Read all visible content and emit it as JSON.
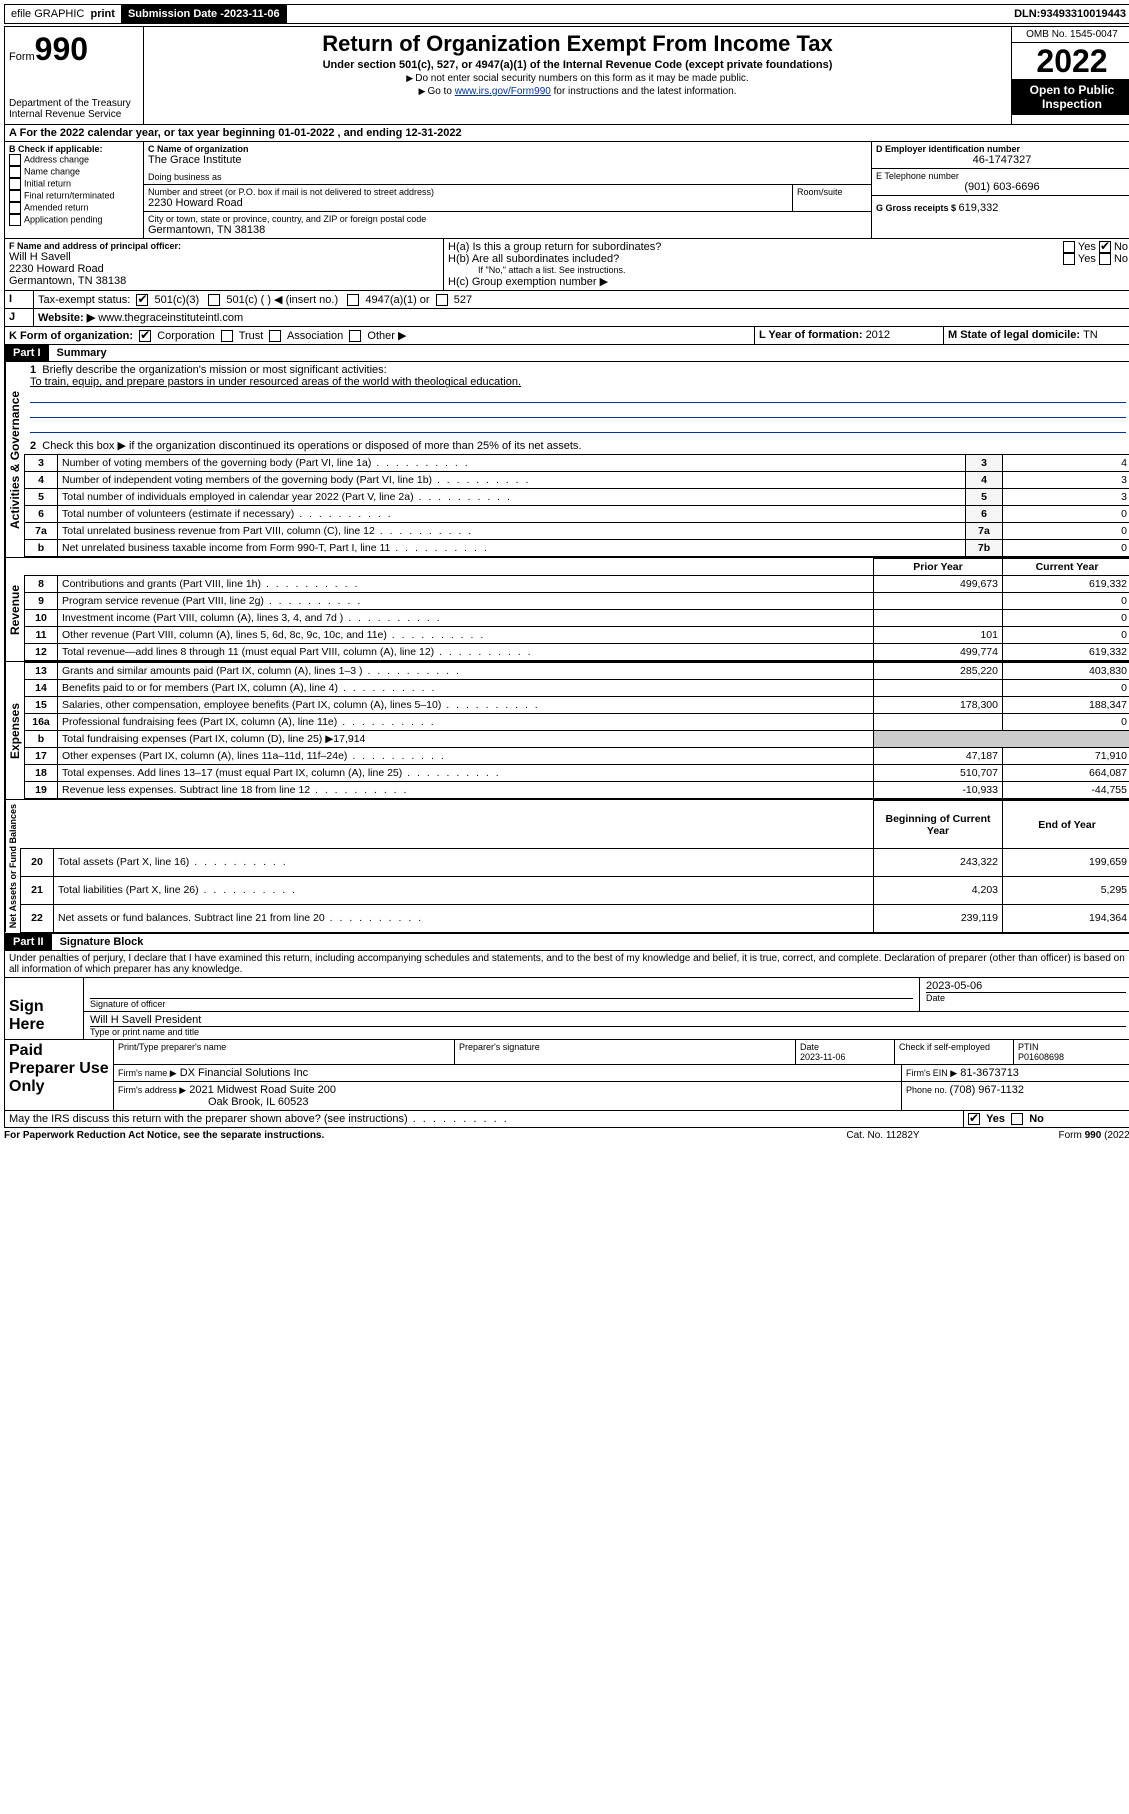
{
  "topbar": {
    "efile": "efile GRAPHIC",
    "print": "print",
    "sub_label": "Submission Date - ",
    "sub_date": "2023-11-06",
    "dln_label": "DLN: ",
    "dln": "93493310019443"
  },
  "header": {
    "form_word": "Form",
    "form_num": "990",
    "dept": "Department of the Treasury",
    "irs": "Internal Revenue Service",
    "title": "Return of Organization Exempt From Income Tax",
    "sub": "Under section 501(c), 527, or 4947(a)(1) of the Internal Revenue Code (except private foundations)",
    "note1": "Do not enter social security numbers on this form as it may be made public.",
    "note2_pre": "Go to ",
    "note2_link": "www.irs.gov/Form990",
    "note2_post": " for instructions and the latest information.",
    "omb": "OMB No. 1545-0047",
    "year": "2022",
    "inspect": "Open to Public Inspection"
  },
  "periodA": {
    "text_pre": "For the 2022 calendar year, or tax year beginning ",
    "begin": "01-01-2022",
    "mid": " , and ending ",
    "end": "12-31-2022"
  },
  "boxB": {
    "label": "B Check if applicable:",
    "items": [
      "Address change",
      "Name change",
      "Initial return",
      "Final return/terminated",
      "Amended return",
      "Application pending"
    ]
  },
  "boxC": {
    "name_label": "C Name of organization",
    "name": "The Grace Institute",
    "dba_label": "Doing business as",
    "dba": "",
    "addr_label": "Number and street (or P.O. box if mail is not delivered to street address)",
    "room_label": "Room/suite",
    "street": "2230 Howard Road",
    "city_label": "City or town, state or province, country, and ZIP or foreign postal code",
    "city": "Germantown, TN  38138"
  },
  "boxD": {
    "label": "D Employer identification number",
    "val": "46-1747327"
  },
  "boxE": {
    "label": "E Telephone number",
    "val": "(901) 603-6696"
  },
  "boxG": {
    "label": "G Gross receipts $ ",
    "val": "619,332"
  },
  "boxF": {
    "label": "F Name and address of principal officer:",
    "name": "Will H Savell",
    "street": "2230 Howard Road",
    "city": "Germantown, TN  38138"
  },
  "boxH": {
    "a_label": "H(a)  Is this a group return for subordinates?",
    "b_label": "H(b)  Are all subordinates included?",
    "b_note": "If \"No,\" attach a list. See instructions.",
    "c_label": "H(c)  Group exemption number ▶",
    "yes": "Yes",
    "no": "No"
  },
  "boxI": {
    "label": "Tax-exempt status:",
    "o1": "501(c)(3)",
    "o2": "501(c) (  ) ◀ (insert no.)",
    "o3": "4947(a)(1) or",
    "o4": "527"
  },
  "boxJ": {
    "label": "Website: ▶",
    "val": "www.thegraceinstituteintl.com"
  },
  "boxK": {
    "label": "K Form of organization:",
    "o1": "Corporation",
    "o2": "Trust",
    "o3": "Association",
    "o4": "Other ▶"
  },
  "boxL": {
    "label": "L Year of formation: ",
    "val": "2012"
  },
  "boxM": {
    "label": "M State of legal domicile: ",
    "val": "TN"
  },
  "partI": {
    "hdr": "Part I",
    "title": "Summary",
    "q1_label": "Briefly describe the organization's mission or most significant activities:",
    "q1_text": "To train, equip, and prepare pastors in under resourced areas of the world with theological education.",
    "q2": "Check this box ▶        if the organization discontinued its operations or disposed of more than 25% of its net assets.",
    "rows_top": [
      {
        "n": "3",
        "t": "Number of voting members of the governing body (Part VI, line 1a)",
        "l": "3",
        "v": "4"
      },
      {
        "n": "4",
        "t": "Number of independent voting members of the governing body (Part VI, line 1b)",
        "l": "4",
        "v": "3"
      },
      {
        "n": "5",
        "t": "Total number of individuals employed in calendar year 2022 (Part V, line 2a)",
        "l": "5",
        "v": "3"
      },
      {
        "n": "6",
        "t": "Total number of volunteers (estimate if necessary)",
        "l": "6",
        "v": "0"
      },
      {
        "n": "7a",
        "t": "Total unrelated business revenue from Part VIII, column (C), line 12",
        "l": "7a",
        "v": "0"
      },
      {
        "n": "b",
        "t": "Net unrelated business taxable income from Form 990-T, Part I, line 11",
        "l": "7b",
        "v": "0"
      }
    ],
    "col_prior": "Prior Year",
    "col_curr": "Current Year",
    "rev": [
      {
        "n": "8",
        "t": "Contributions and grants (Part VIII, line 1h)",
        "p": "499,673",
        "c": "619,332"
      },
      {
        "n": "9",
        "t": "Program service revenue (Part VIII, line 2g)",
        "p": "",
        "c": "0"
      },
      {
        "n": "10",
        "t": "Investment income (Part VIII, column (A), lines 3, 4, and 7d )",
        "p": "",
        "c": "0"
      },
      {
        "n": "11",
        "t": "Other revenue (Part VIII, column (A), lines 5, 6d, 8c, 9c, 10c, and 11e)",
        "p": "101",
        "c": "0"
      },
      {
        "n": "12",
        "t": "Total revenue—add lines 8 through 11 (must equal Part VIII, column (A), line 12)",
        "p": "499,774",
        "c": "619,332"
      }
    ],
    "exp": [
      {
        "n": "13",
        "t": "Grants and similar amounts paid (Part IX, column (A), lines 1–3 )",
        "p": "285,220",
        "c": "403,830"
      },
      {
        "n": "14",
        "t": "Benefits paid to or for members (Part IX, column (A), line 4)",
        "p": "",
        "c": "0"
      },
      {
        "n": "15",
        "t": "Salaries, other compensation, employee benefits (Part IX, column (A), lines 5–10)",
        "p": "178,300",
        "c": "188,347"
      },
      {
        "n": "16a",
        "t": "Professional fundraising fees (Part IX, column (A), line 11e)",
        "p": "",
        "c": "0"
      },
      {
        "n": "b",
        "t": "Total fundraising expenses (Part IX, column (D), line 25) ▶17,914",
        "p": "—",
        "c": "—"
      },
      {
        "n": "17",
        "t": "Other expenses (Part IX, column (A), lines 11a–11d, 11f–24e)",
        "p": "47,187",
        "c": "71,910"
      },
      {
        "n": "18",
        "t": "Total expenses. Add lines 13–17 (must equal Part IX, column (A), line 25)",
        "p": "510,707",
        "c": "664,087"
      },
      {
        "n": "19",
        "t": "Revenue less expenses. Subtract line 18 from line 12",
        "p": "-10,933",
        "c": "-44,755"
      }
    ],
    "col_beg": "Beginning of Current Year",
    "col_end": "End of Year",
    "net": [
      {
        "n": "20",
        "t": "Total assets (Part X, line 16)",
        "p": "243,322",
        "c": "199,659"
      },
      {
        "n": "21",
        "t": "Total liabilities (Part X, line 26)",
        "p": "4,203",
        "c": "5,295"
      },
      {
        "n": "22",
        "t": "Net assets or fund balances. Subtract line 21 from line 20",
        "p": "239,119",
        "c": "194,364"
      }
    ],
    "side_ag": "Activities & Governance",
    "side_rev": "Revenue",
    "side_exp": "Expenses",
    "side_net": "Net Assets or Fund Balances"
  },
  "partII": {
    "hdr": "Part II",
    "title": "Signature Block",
    "decl": "Under penalties of perjury, I declare that I have examined this return, including accompanying schedules and statements, and to the best of my knowledge and belief, it is true, correct, and complete. Declaration of preparer (other than officer) is based on all information of which preparer has any knowledge.",
    "sign_here": "Sign Here",
    "sig_officer": "Signature of officer",
    "sig_date_label": "Date",
    "sig_date": "2023-05-06",
    "officer_name": "Will H Savell  President",
    "officer_sub": "Type or print name and title",
    "paid": "Paid Preparer Use Only",
    "prep_name_h": "Print/Type preparer's name",
    "prep_sig_h": "Preparer's signature",
    "prep_date_h": "Date",
    "prep_date": "2023-11-06",
    "self_emp": "Check        if self-employed",
    "ptin_h": "PTIN",
    "ptin": "P01608698",
    "firm_name_l": "Firm's name    ▶",
    "firm_name": "DX Financial Solutions Inc",
    "firm_ein_l": "Firm's EIN ▶",
    "firm_ein": "81-3673713",
    "firm_addr_l": "Firm's address ▶",
    "firm_addr1": "2021 Midwest Road Suite 200",
    "firm_addr2": "Oak Brook, IL  60523",
    "firm_phone_l": "Phone no. ",
    "firm_phone": "(708) 967-1132",
    "may_irs": "May the IRS discuss this return with the preparer shown above? (see instructions)",
    "yes": "Yes",
    "no": "No"
  },
  "footer": {
    "pra": "For Paperwork Reduction Act Notice, see the separate instructions.",
    "cat": "Cat. No. 11282Y",
    "form": "Form 990 (2022)"
  }
}
